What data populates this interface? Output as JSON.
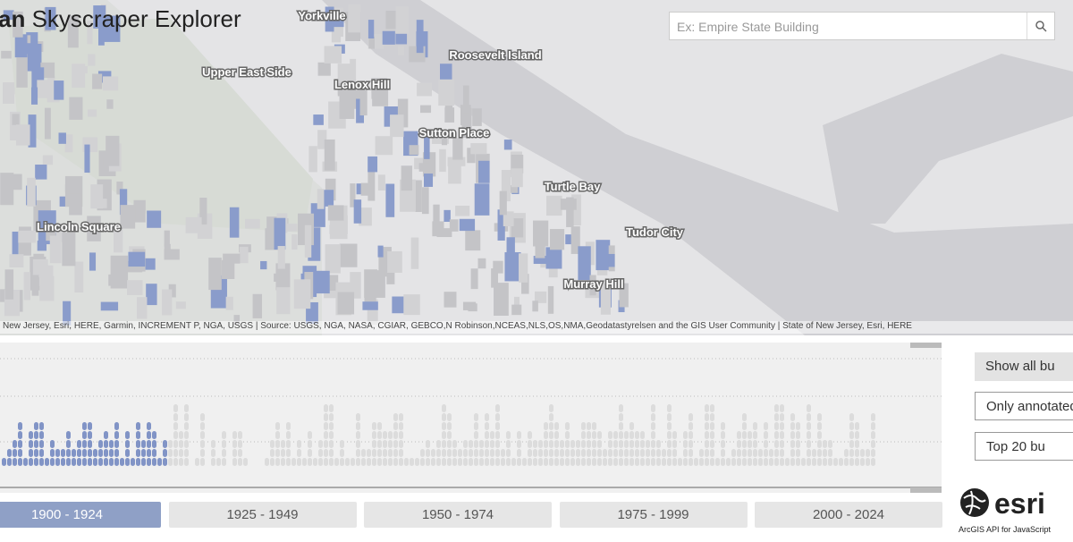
{
  "header": {
    "title_bold": "an",
    "title": "Skyscraper Explorer"
  },
  "search": {
    "placeholder": "Ex: Empire State Building"
  },
  "map": {
    "labels": [
      "Yorkville",
      "Roosevelt Island",
      "Upper East Side",
      "Lenox Hill",
      "Sutton Place",
      "Turtle Bay",
      "Lincoln Square",
      "Tudor City",
      "Murray Hill"
    ],
    "attribution": "New Jersey, Esri, HERE, Garmin, INCREMENT P, NGA, USGS | Source: USGS, NGA, NASA, CGIAR, GEBCO,N Robinson,NCEAS,NLS,OS,NMA,Geodatastyrelsen and the GIS User Community | State of New Jersey, Esri, HERE"
  },
  "filters": [
    "Show all bu",
    "Only annotated",
    "Top 20 bu"
  ],
  "eras": [
    "1900 - 1924",
    "1925 - 1949",
    "1950 - 1974",
    "1975 - 1999",
    "2000 - 2024"
  ],
  "logo": {
    "brand": "esri",
    "caption": "ArcGIS API for JavaScript"
  }
}
